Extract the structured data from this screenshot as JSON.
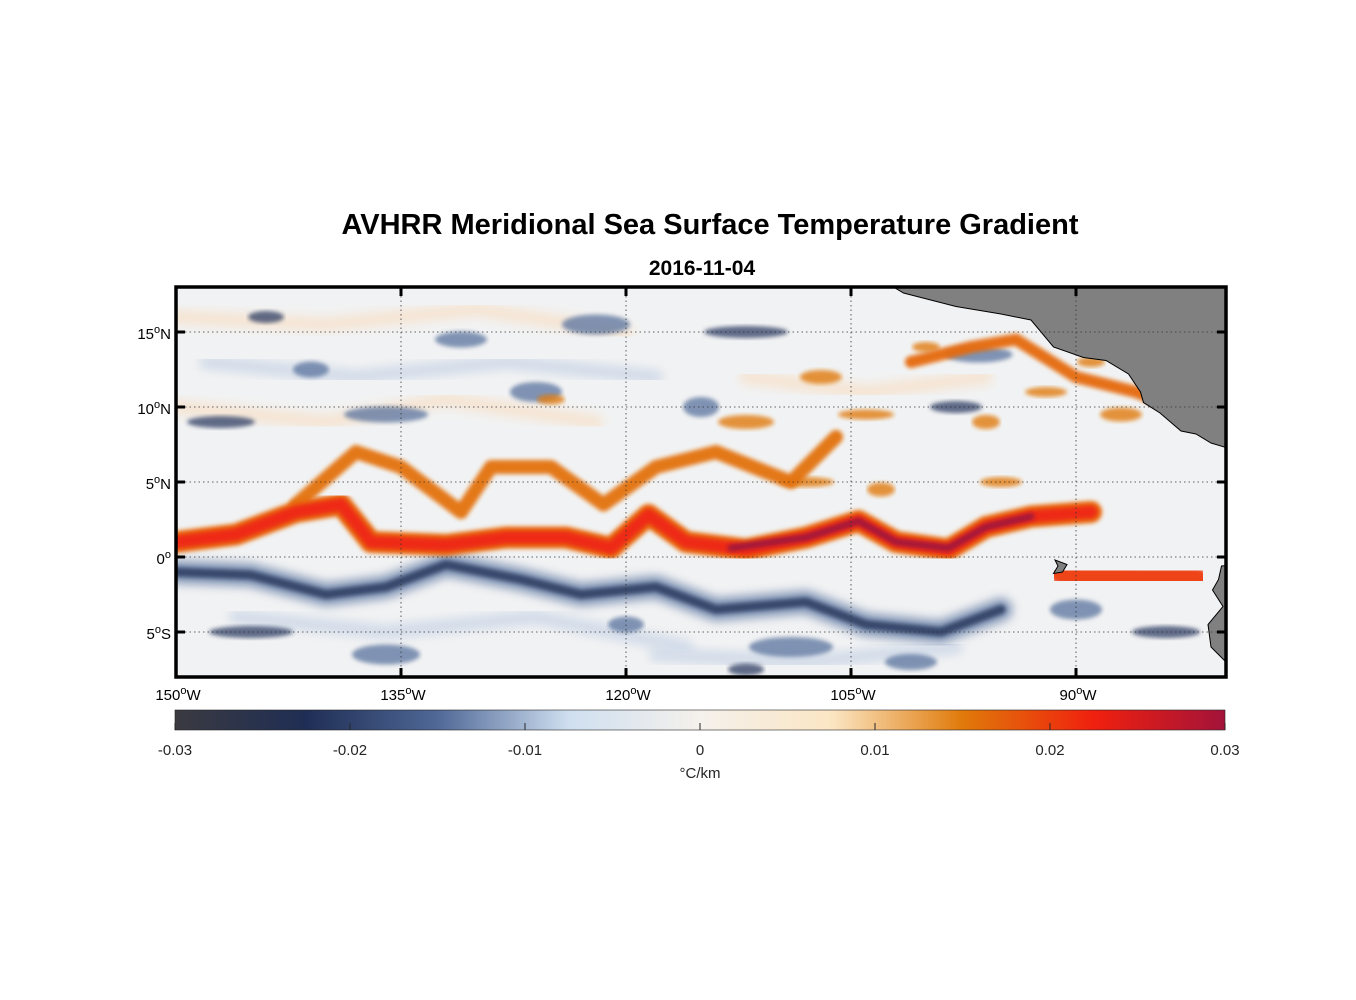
{
  "chart_data": {
    "type": "heatmap",
    "title": "AVHRR Meridional Sea Surface Temperature Gradient",
    "subtitle": "2016-11-04",
    "variable": "meridional SST gradient",
    "units": "°C/km",
    "colorbar_label": "°C/km",
    "clim": [
      -0.03,
      0.03
    ],
    "lon_range": [
      -150,
      -80
    ],
    "lat_range": [
      -8,
      18
    ],
    "x_ticks": [
      {
        "value": -150,
        "deg": "150",
        "hemi": "W"
      },
      {
        "value": -135,
        "deg": "135",
        "hemi": "W"
      },
      {
        "value": -120,
        "deg": "120",
        "hemi": "W"
      },
      {
        "value": -105,
        "deg": "105",
        "hemi": "W"
      },
      {
        "value": -90,
        "deg": "90",
        "hemi": "W"
      }
    ],
    "y_ticks": [
      {
        "value": 15,
        "deg": "15",
        "hemi": "N"
      },
      {
        "value": 10,
        "deg": "10",
        "hemi": "N"
      },
      {
        "value": 5,
        "deg": "5",
        "hemi": "N"
      },
      {
        "value": 0,
        "deg": "0",
        "hemi": ""
      },
      {
        "value": -5,
        "deg": "5",
        "hemi": "S"
      }
    ],
    "colorbar_ticks": [
      "-0.03",
      "-0.02",
      "-0.01",
      "0",
      "0.01",
      "0.02",
      "0.03"
    ],
    "colormap": [
      "#3a3a40",
      "#1f2e55",
      "#4f6896",
      "#cfdff0",
      "#f5f1ec",
      "#fbe6c4",
      "#e07a0a",
      "#f0200e",
      "#a3133a"
    ],
    "land_color": "#808080",
    "features": {
      "warm_front_equatorial": [
        [
          -150,
          1
        ],
        [
          -146,
          1.5
        ],
        [
          -142,
          3
        ],
        [
          -139,
          3.5
        ],
        [
          -137,
          1
        ],
        [
          -132,
          0.8
        ],
        [
          -128,
          1.3
        ],
        [
          -124,
          1.3
        ],
        [
          -121,
          0.6
        ],
        [
          -118.5,
          2.8
        ],
        [
          -116,
          1
        ],
        [
          -112,
          0.5
        ],
        [
          -108,
          1.3
        ],
        [
          -104.5,
          2.4
        ],
        [
          -102,
          1
        ],
        [
          -98.5,
          0.5
        ],
        [
          -96,
          2
        ],
        [
          -93,
          2.7
        ],
        [
          -89,
          3
        ]
      ],
      "warm_front_north_waves": [
        [
          -142,
          3.5
        ],
        [
          -138,
          7
        ],
        [
          -135,
          6
        ],
        [
          -131,
          3
        ],
        [
          -129,
          6
        ],
        [
          -125,
          6
        ],
        [
          -121.5,
          3.5
        ],
        [
          -118,
          6
        ],
        [
          -114,
          7
        ],
        [
          -109,
          5
        ],
        [
          -106,
          8
        ]
      ],
      "warm_front_northeast": [
        [
          -101,
          13
        ],
        [
          -97,
          14
        ],
        [
          -94,
          14.5
        ],
        [
          -90,
          12
        ],
        [
          -86,
          11
        ],
        [
          -81,
          9
        ]
      ],
      "cold_band_south": [
        [
          -150,
          -1
        ],
        [
          -145,
          -1.2
        ],
        [
          -140,
          -2.5
        ],
        [
          -136,
          -2
        ],
        [
          -132,
          -0.5
        ],
        [
          -127,
          -1.5
        ],
        [
          -123,
          -2.5
        ],
        [
          -118,
          -2
        ],
        [
          -114,
          -3.5
        ],
        [
          -108,
          -3
        ],
        [
          -104,
          -4.5
        ],
        [
          -99,
          -5
        ],
        [
          -95,
          -3.5
        ]
      ],
      "warm_coastal_southeast": [
        [
          -91,
          -1
        ],
        [
          -86,
          -1.5
        ],
        [
          -82,
          -1.5
        ]
      ]
    }
  }
}
